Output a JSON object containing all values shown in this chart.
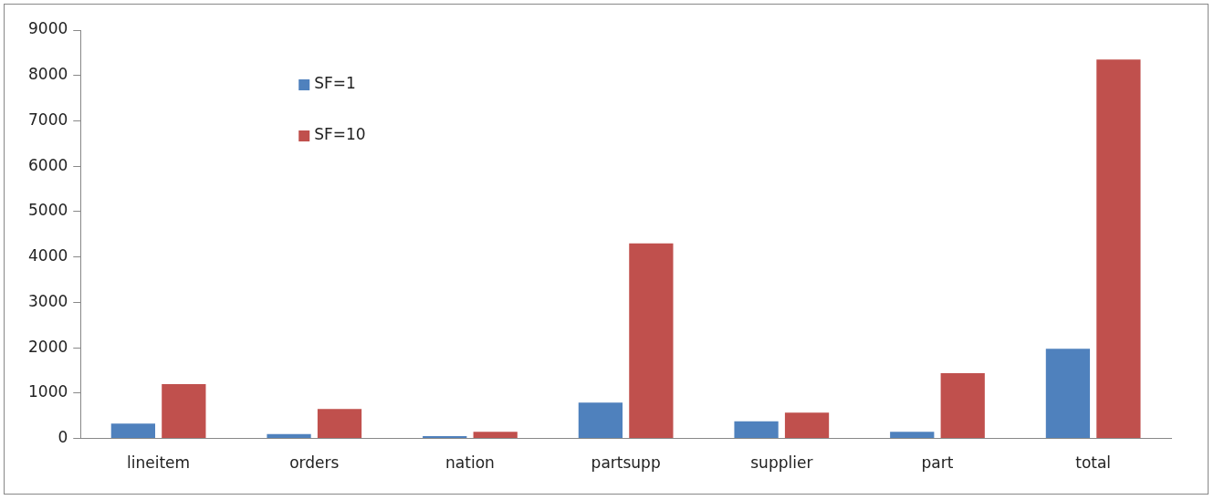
{
  "chart_data": {
    "type": "bar",
    "categories": [
      "lineitem",
      "orders",
      "nation",
      "partsupp",
      "supplier",
      "part",
      "total"
    ],
    "series": [
      {
        "name": "SF=1",
        "color": "#4f81bd",
        "values": [
          330,
          100,
          50,
          790,
          380,
          150,
          1980
        ]
      },
      {
        "name": "SF=10",
        "color": "#c0504d",
        "values": [
          1200,
          650,
          150,
          4300,
          570,
          1440,
          8350
        ]
      }
    ],
    "ylim": [
      0,
      9000
    ],
    "yticks": [
      0,
      1000,
      2000,
      3000,
      4000,
      5000,
      6000,
      7000,
      8000,
      9000
    ],
    "grid": false,
    "legend": "top left"
  }
}
